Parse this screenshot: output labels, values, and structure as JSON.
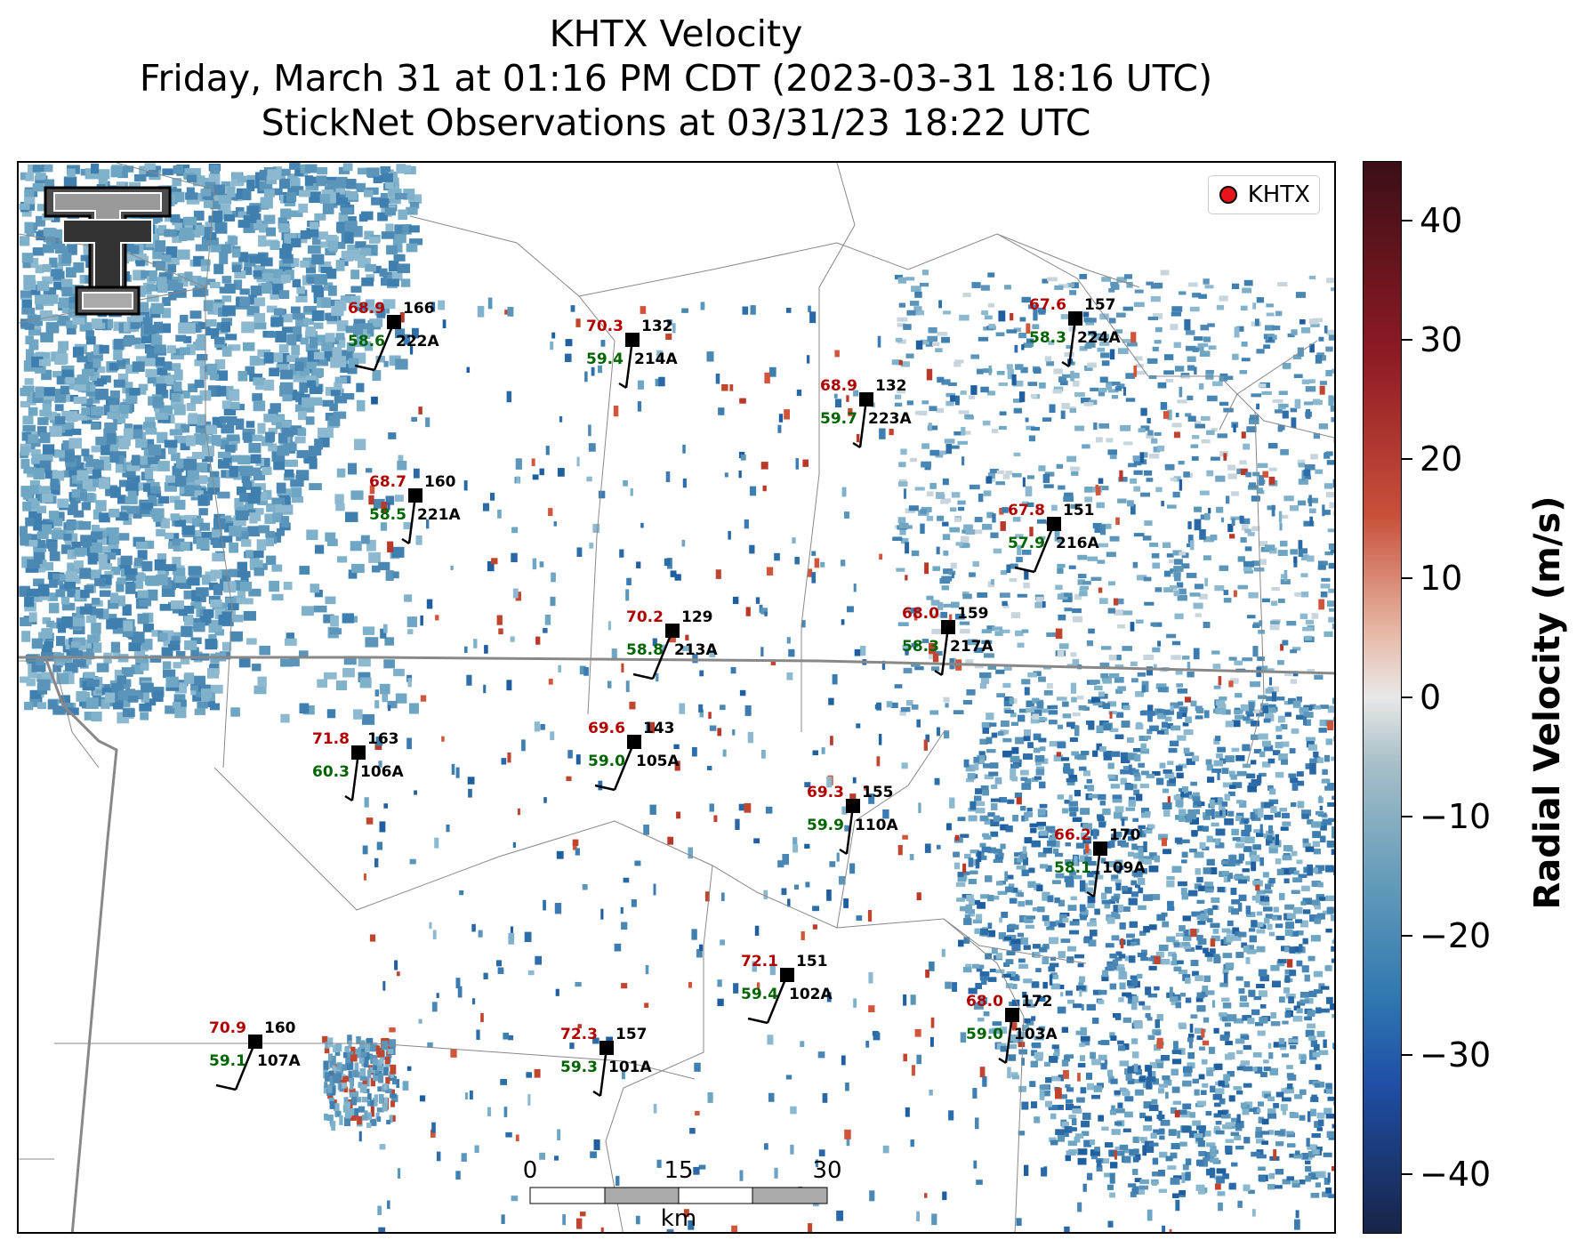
{
  "title": {
    "line1": "KHTX Velocity",
    "line2": "Friday, March 31 at 01:16 PM CDT (2023-03-31 18:16 UTC)",
    "line3": "StickNet Observations at 03/31/23 18:22 UTC"
  },
  "legend": {
    "label": "KHTX",
    "marker_color": "#e8141a"
  },
  "colorbar": {
    "title": "Radial Velocity (m/s)",
    "ticks": [
      "40",
      "30",
      "20",
      "10",
      "0",
      "−10",
      "−20",
      "−30",
      "−40"
    ],
    "range": [
      -45,
      45
    ]
  },
  "scale_bar": {
    "labels": [
      "0",
      "15",
      "30"
    ],
    "unit": "km"
  },
  "logo": {
    "icon": "texas-tech-logo-icon"
  },
  "colors": {
    "temperature": "#b00000",
    "dewpoint": "#006400",
    "station": "#000000"
  },
  "stations": [
    {
      "id": "222A",
      "temp": "68.9",
      "dew": "58.6",
      "pres": "166"
    },
    {
      "id": "214A",
      "temp": "70.3",
      "dew": "59.4",
      "pres": "132"
    },
    {
      "id": "223A",
      "temp": "68.9",
      "dew": "59.7",
      "pres": "132"
    },
    {
      "id": "224A",
      "temp": "67.6",
      "dew": "58.3",
      "pres": "157"
    },
    {
      "id": "221A",
      "temp": "68.7",
      "dew": "58.5",
      "pres": "160"
    },
    {
      "id": "216A",
      "temp": "67.8",
      "dew": "57.9",
      "pres": "151"
    },
    {
      "id": "213A",
      "temp": "70.2",
      "dew": "58.8",
      "pres": "129"
    },
    {
      "id": "217A",
      "temp": "68.0",
      "dew": "58.3",
      "pres": "159"
    },
    {
      "id": "106A",
      "temp": "71.8",
      "dew": "60.3",
      "pres": "163"
    },
    {
      "id": "105A",
      "temp": "69.6",
      "dew": "59.0",
      "pres": "143"
    },
    {
      "id": "110A",
      "temp": "69.3",
      "dew": "59.9",
      "pres": "155"
    },
    {
      "id": "109A",
      "temp": "66.2",
      "dew": "58.1",
      "pres": "170"
    },
    {
      "id": "102A",
      "temp": "72.1",
      "dew": "59.4",
      "pres": "151"
    },
    {
      "id": "103A",
      "temp": "68.0",
      "dew": "59.0",
      "pres": "172"
    },
    {
      "id": "107A",
      "temp": "70.9",
      "dew": "59.1",
      "pres": "160"
    },
    {
      "id": "101A",
      "temp": "72.3",
      "dew": "59.3",
      "pres": "157"
    }
  ]
}
